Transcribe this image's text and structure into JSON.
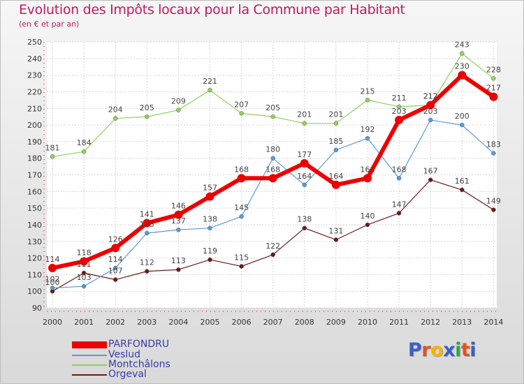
{
  "chart_data": {
    "type": "line",
    "title": "Evolution des Impôts locaux pour la Commune par Habitant",
    "subtitle": "(en € et par an)",
    "categories": [
      "2000",
      "2001",
      "2002",
      "2003",
      "2004",
      "2005",
      "2006",
      "2007",
      "2008",
      "2009",
      "2010",
      "2011",
      "2012",
      "2013",
      "2014"
    ],
    "ylim": [
      90,
      250
    ],
    "yticks": [
      90,
      100,
      110,
      120,
      130,
      140,
      150,
      160,
      170,
      180,
      190,
      200,
      210,
      220,
      230,
      240,
      250
    ],
    "grid": true,
    "series": [
      {
        "name": "Orgeval",
        "color": "#6b1a1a",
        "values": [
          100,
          111,
          107,
          112,
          113,
          119,
          115,
          122,
          138,
          131,
          140,
          147,
          167,
          161,
          149
        ]
      },
      {
        "name": "Veslud",
        "color": "#5b9bd5",
        "values": [
          102,
          103,
          114,
          135,
          137,
          138,
          145,
          180,
          164,
          185,
          192,
          168,
          203,
          200,
          183
        ]
      },
      {
        "name": "Montchâlons",
        "color": "#8ed25a",
        "values": [
          181,
          184,
          204,
          205,
          209,
          221,
          207,
          205,
          201,
          201,
          215,
          211,
          212,
          243,
          228
        ]
      },
      {
        "name": "PARFONDRU",
        "color": "#ee0000",
        "values": [
          114,
          118,
          126,
          141,
          146,
          157,
          168,
          168,
          177,
          164,
          168,
          203,
          212,
          230,
          217
        ]
      }
    ],
    "legend": [
      "PARFONDRU",
      "Veslud",
      "Montchâlons",
      "Orgeval"
    ],
    "legend_position": "bottom-left"
  },
  "logo": {
    "letters": [
      "P",
      "r",
      "o",
      "x",
      "i",
      "t",
      "i"
    ],
    "colors": [
      "#3b5fc8",
      "#e94e1b",
      "#f4b400",
      "#3b5fc8",
      "#2aa84a",
      "#e94e1b",
      "#3b5fc8"
    ]
  }
}
